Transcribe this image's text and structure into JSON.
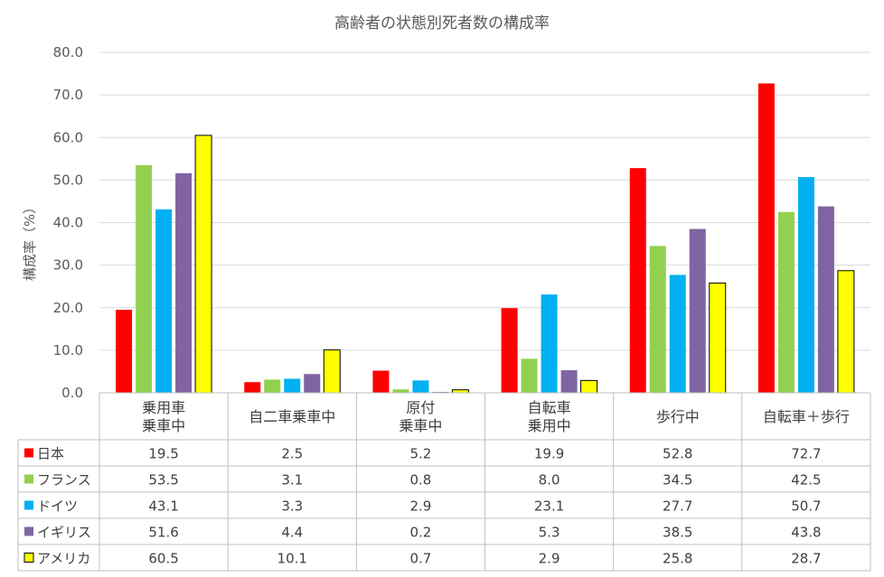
{
  "chart_data": {
    "type": "bar",
    "title": "高齢者の状態別死者数の構成率",
    "ylabel": "構成率（%）",
    "xlabel": "",
    "ylim": [
      0,
      80
    ],
    "yticks": [
      "0.0",
      "10.0",
      "20.0",
      "30.0",
      "40.0",
      "50.0",
      "60.0",
      "70.0",
      "80.0"
    ],
    "grid": true,
    "legend": "data-table",
    "categories": [
      [
        "乗用車",
        "乗車中"
      ],
      [
        "自二車乗車中"
      ],
      [
        "原付",
        "乗車中"
      ],
      [
        "自転車",
        "乗用中"
      ],
      [
        "歩行中"
      ],
      [
        "自転車＋歩行"
      ]
    ],
    "series": [
      {
        "name": "日本",
        "color": "#ff0000",
        "values": [
          19.5,
          2.5,
          5.2,
          19.9,
          52.8,
          72.7
        ],
        "labels": [
          "19.5",
          "2.5",
          "5.2",
          "19.9",
          "52.8",
          "72.7"
        ]
      },
      {
        "name": "フランス",
        "color": "#92d050",
        "values": [
          53.5,
          3.1,
          0.8,
          8.0,
          34.5,
          42.5
        ],
        "labels": [
          "53.5",
          "3.1",
          "0.8",
          "8.0",
          "34.5",
          "42.5"
        ]
      },
      {
        "name": "ドイツ",
        "color": "#00b0f0",
        "values": [
          43.1,
          3.3,
          2.9,
          23.1,
          27.7,
          50.7
        ],
        "labels": [
          "43.1",
          "3.3",
          "2.9",
          "23.1",
          "27.7",
          "50.7"
        ]
      },
      {
        "name": "イギリス",
        "color": "#8064a2",
        "values": [
          51.6,
          4.4,
          0.2,
          5.3,
          38.5,
          43.8
        ],
        "labels": [
          "51.6",
          "4.4",
          "0.2",
          "5.3",
          "38.5",
          "43.8"
        ]
      },
      {
        "name": "アメリカ",
        "color": "#ffff00",
        "values": [
          60.5,
          10.1,
          0.7,
          2.9,
          25.8,
          28.7
        ],
        "labels": [
          "60.5",
          "10.1",
          "0.7",
          "2.9",
          "25.8",
          "28.7"
        ]
      }
    ]
  }
}
